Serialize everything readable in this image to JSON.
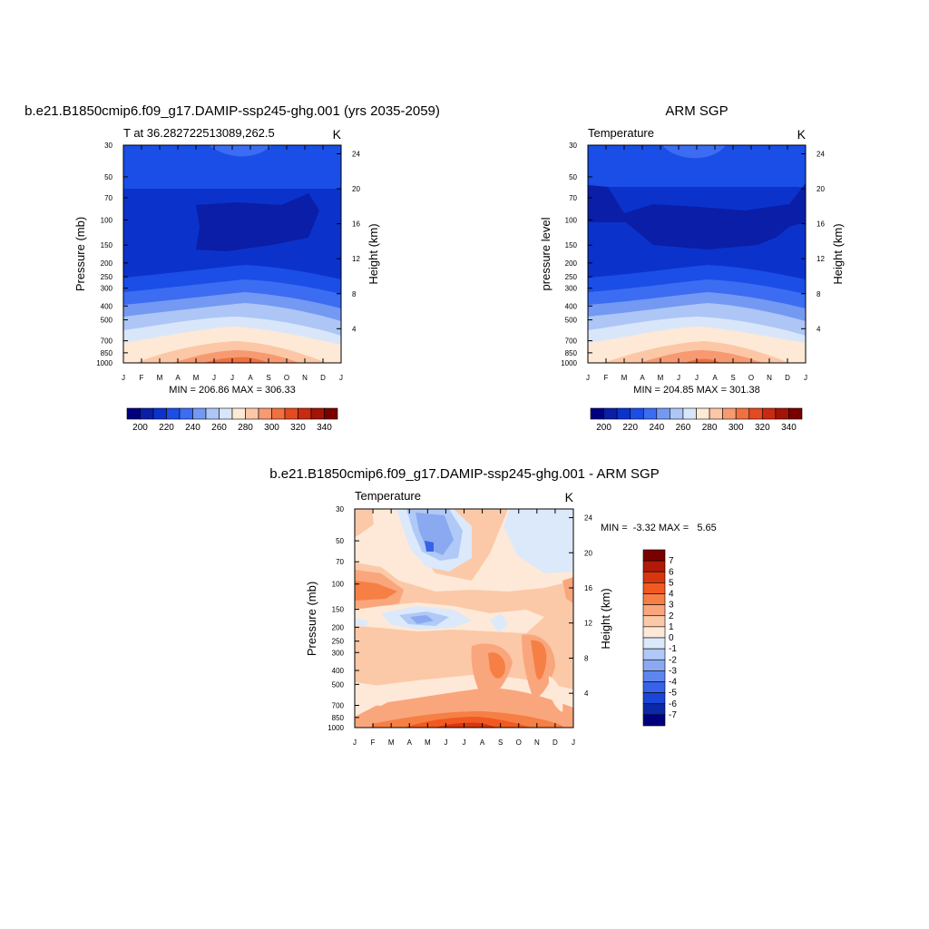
{
  "chart_data": [
    {
      "type": "heatmap",
      "title": "b.e21.B1850cmip6.f09_g17.DAMIP-ssp245-ghg.001 (yrs 2035-2059)",
      "left_subtitle": "T at 36.282722513089,262.5",
      "right_subtitle": "K",
      "ylabel": "Pressure (mb)",
      "ylabel_right": "Height (km)",
      "xlabel_months": [
        "J",
        "F",
        "M",
        "A",
        "M",
        "J",
        "J",
        "A",
        "S",
        "O",
        "N",
        "D",
        "J"
      ],
      "y_ticks": [
        "30",
        "50",
        "70",
        "100",
        "150",
        "200",
        "250",
        "300",
        "400",
        "500",
        "700",
        "850",
        "1000"
      ],
      "y_right_ticks": [
        "24",
        "20",
        "16",
        "12",
        "8",
        "4"
      ],
      "min_max_text": "MIN = 206.86 MAX = 306.33",
      "colorbar_labels": [
        "200",
        "220",
        "240",
        "260",
        "280",
        "300",
        "320",
        "340"
      ],
      "min": 206.86,
      "max": 306.33
    },
    {
      "type": "heatmap",
      "title": "ARM SGP",
      "left_subtitle": "Temperature",
      "right_subtitle": "K",
      "ylabel": "pressure level",
      "ylabel_right": "Height (km)",
      "xlabel_months": [
        "J",
        "F",
        "M",
        "A",
        "M",
        "J",
        "J",
        "A",
        "S",
        "O",
        "N",
        "D",
        "J"
      ],
      "y_ticks": [
        "30",
        "50",
        "70",
        "100",
        "150",
        "200",
        "250",
        "300",
        "400",
        "500",
        "700",
        "850",
        "1000"
      ],
      "y_right_ticks": [
        "24",
        "20",
        "16",
        "12",
        "8",
        "4"
      ],
      "min_max_text": "MIN = 204.85 MAX = 301.38",
      "colorbar_labels": [
        "200",
        "220",
        "240",
        "260",
        "280",
        "300",
        "320",
        "340"
      ],
      "min": 204.85,
      "max": 301.38
    },
    {
      "type": "heatmap",
      "title": "b.e21.B1850cmip6.f09_g17.DAMIP-ssp245-ghg.001 - ARM SGP",
      "left_subtitle": "Temperature",
      "right_subtitle": "K",
      "ylabel": "Pressure (mb)",
      "ylabel_right": "Height (km)",
      "xlabel_months": [
        "J",
        "F",
        "M",
        "A",
        "M",
        "J",
        "J",
        "A",
        "S",
        "O",
        "N",
        "D",
        "J"
      ],
      "y_ticks": [
        "30",
        "50",
        "70",
        "100",
        "150",
        "200",
        "250",
        "300",
        "400",
        "500",
        "700",
        "850",
        "1000"
      ],
      "y_right_ticks": [
        "24",
        "20",
        "16",
        "12",
        "8",
        "4"
      ],
      "min_max_text": "MIN =  -3.32 MAX =   5.65",
      "colorbar_labels": [
        "7",
        "6",
        "5",
        "4",
        "3",
        "2",
        "1",
        "0",
        "-1",
        "-2",
        "-3",
        "-4",
        "-5",
        "-6",
        "-7"
      ],
      "min": -3.32,
      "max": 5.65
    }
  ],
  "colors": {
    "abs_palette": [
      "#00007f",
      "#0a1ea8",
      "#0b33cc",
      "#1a4ee6",
      "#3b6cf2",
      "#7399f2",
      "#adc6f5",
      "#d9e6fa",
      "#fde9d6",
      "#fcc7a6",
      "#f79a72",
      "#f0703f",
      "#e34a1f",
      "#c92a10",
      "#a31306",
      "#7a0000"
    ],
    "diff_palette": [
      "#7a0000",
      "#b01a08",
      "#d8360f",
      "#f05a22",
      "#f67f45",
      "#f9a67d",
      "#fbc9a8",
      "#fee9d8",
      "#dbe9fb",
      "#b0c9f6",
      "#8aa9f1",
      "#5f86ee",
      "#3763ea",
      "#1a45d6",
      "#0a28a8",
      "#00007f"
    ]
  }
}
